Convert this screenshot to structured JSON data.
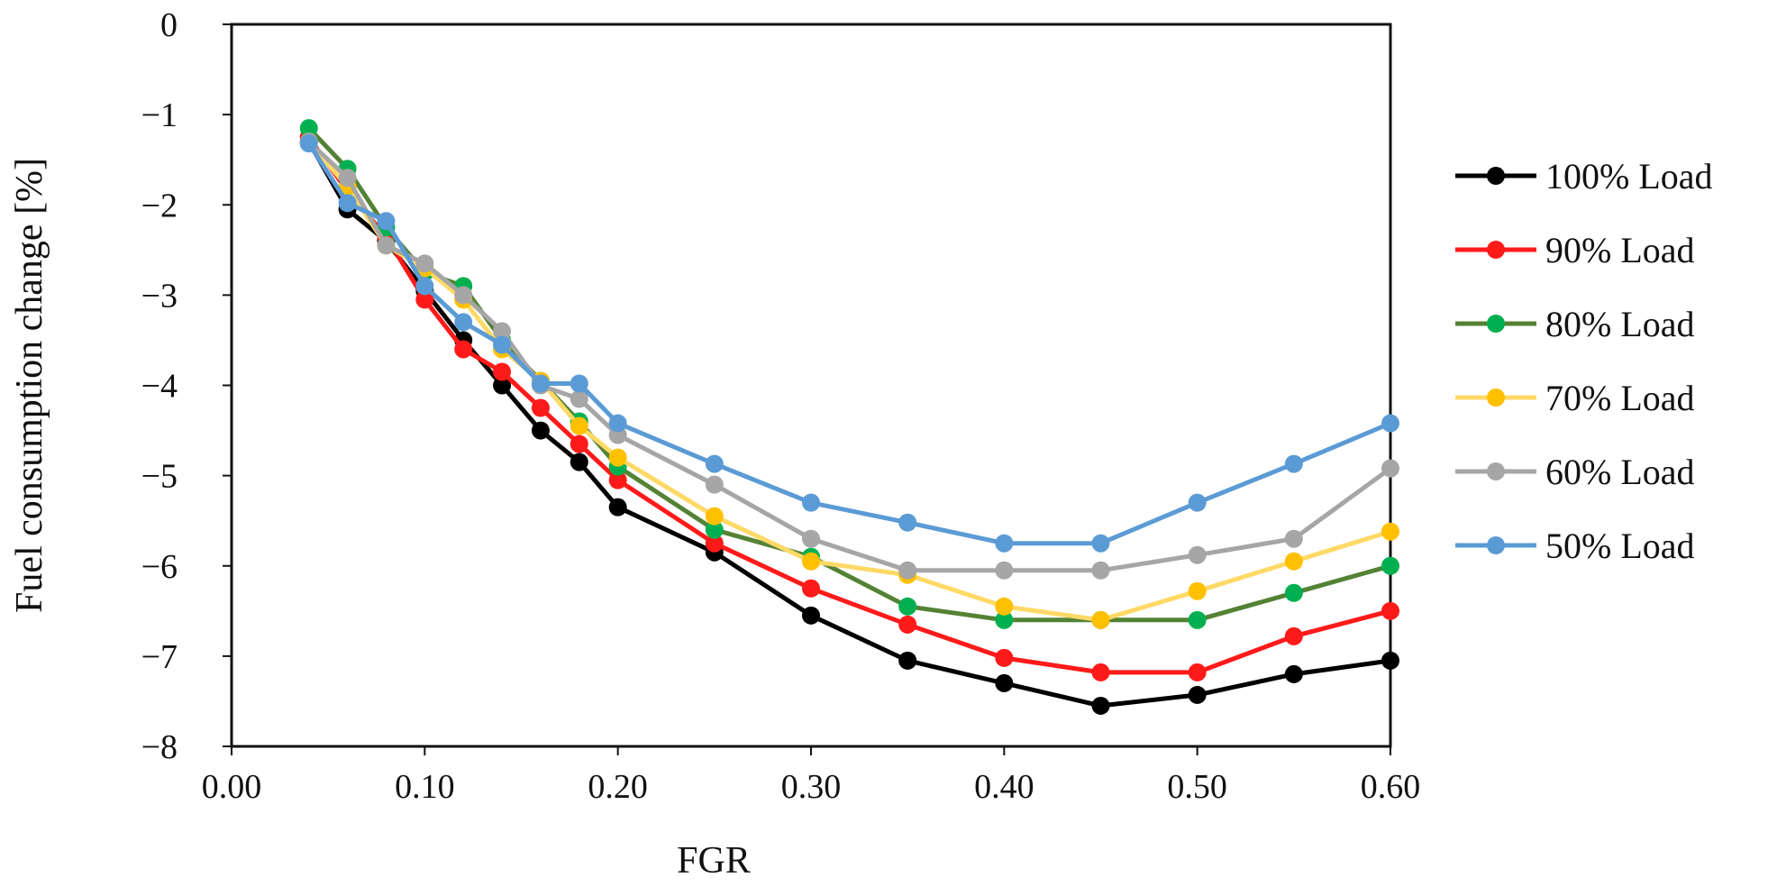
{
  "chart_data": {
    "type": "line",
    "title": "",
    "xlabel": "FGR",
    "ylabel": "Fuel consumption change [%]",
    "xlim": [
      0.0,
      0.6
    ],
    "ylim": [
      -8,
      0
    ],
    "x_ticks": [
      0.0,
      0.1,
      0.2,
      0.3,
      0.4,
      0.5,
      0.6
    ],
    "x_tick_labels": [
      "0.00",
      "0.10",
      "0.20",
      "0.30",
      "0.40",
      "0.50",
      "0.60"
    ],
    "y_ticks": [
      0,
      -1,
      -2,
      -3,
      -4,
      -5,
      -6,
      -7,
      -8
    ],
    "y_tick_labels": [
      "0",
      "−1",
      "−2",
      "−3",
      "−4",
      "−5",
      "−6",
      "−7",
      "−8"
    ],
    "grid": false,
    "legend_position": "right",
    "x": [
      0.04,
      0.06,
      0.08,
      0.1,
      0.12,
      0.14,
      0.16,
      0.18,
      0.2,
      0.25,
      0.3,
      0.35,
      0.4,
      0.45,
      0.5,
      0.55,
      0.6
    ],
    "series": [
      {
        "name": "100% Load",
        "color": "#000000",
        "values": [
          -1.3,
          -2.05,
          -2.4,
          -2.95,
          -3.5,
          -4.0,
          -4.5,
          -4.85,
          -5.35,
          -5.85,
          -6.55,
          -7.05,
          -7.3,
          -7.55,
          -7.43,
          -7.2,
          -7.05
        ]
      },
      {
        "name": "90% Load",
        "color": "#ff1a1a",
        "values": [
          -1.25,
          -1.85,
          -2.35,
          -3.05,
          -3.6,
          -3.85,
          -4.25,
          -4.65,
          -5.05,
          -5.75,
          -6.25,
          -6.65,
          -7.02,
          -7.18,
          -7.18,
          -6.78,
          -6.5
        ]
      },
      {
        "name": "80% Load",
        "color": "#548235",
        "marker_color": "#00b050",
        "values": [
          -1.15,
          -1.6,
          -2.25,
          -2.75,
          -2.9,
          -3.5,
          -3.95,
          -4.4,
          -4.9,
          -5.6,
          -5.9,
          -6.45,
          -6.6,
          -6.6,
          -6.6,
          -6.3,
          -6.0
        ]
      },
      {
        "name": "70% Load",
        "color": "#ffd966",
        "marker_color": "#ffc000",
        "values": [
          -1.3,
          -1.8,
          -2.45,
          -2.7,
          -3.05,
          -3.6,
          -3.95,
          -4.45,
          -4.8,
          -5.45,
          -5.95,
          -6.1,
          -6.45,
          -6.6,
          -6.28,
          -5.95,
          -5.62
        ]
      },
      {
        "name": "60% Load",
        "color": "#a6a6a6",
        "values": [
          -1.3,
          -1.7,
          -2.45,
          -2.65,
          -3.0,
          -3.4,
          -4.0,
          -4.15,
          -4.55,
          -5.1,
          -5.7,
          -6.05,
          -6.05,
          -6.05,
          -5.88,
          -5.7,
          -4.92
        ]
      },
      {
        "name": "50% Load",
        "color": "#5b9bd5",
        "values": [
          -1.32,
          -1.98,
          -2.18,
          -2.9,
          -3.3,
          -3.55,
          -3.98,
          -3.98,
          -4.42,
          -4.87,
          -5.3,
          -5.52,
          -5.75,
          -5.75,
          -5.3,
          -4.87,
          -4.42
        ]
      }
    ]
  }
}
